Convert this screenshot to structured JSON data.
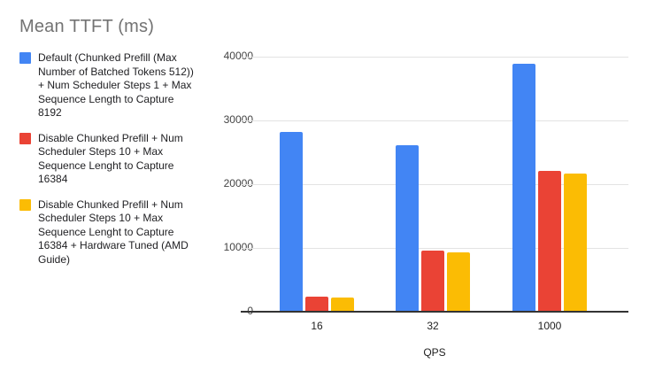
{
  "title": "Mean TTFT (ms)",
  "chart_data": {
    "type": "bar",
    "title": "Mean TTFT (ms)",
    "categories": [
      "16",
      "32",
      "1000"
    ],
    "series": [
      {
        "name": "Default (Chunked Prefill (Max Number of Batched Tokens 512)) + Num Scheduler Steps 1 + Max Sequence Length to Capture 8192",
        "color": "#4285f4",
        "values": [
          28100,
          26000,
          38700
        ]
      },
      {
        "name": "Disable Chunked Prefill + Num Scheduler Steps 10 + Max Sequence Lenght to Capture 16384",
        "color": "#ea4335",
        "values": [
          2200,
          9400,
          21900
        ]
      },
      {
        "name": "Disable Chunked Prefill + Num Scheduler Steps 10 + Max Sequence Lenght to Capture 16384 + Hardware Tuned (AMD Guide)",
        "color": "#fbbc04",
        "values": [
          2100,
          9200,
          21500
        ]
      }
    ],
    "xlabel": "QPS",
    "ylabel": "",
    "ylim": [
      0,
      40000
    ],
    "y_tick_labels": [
      "40000",
      "30000",
      "20000",
      "10000",
      "0"
    ],
    "grid": true,
    "legend_position": "left",
    "background": "#ffffff"
  }
}
